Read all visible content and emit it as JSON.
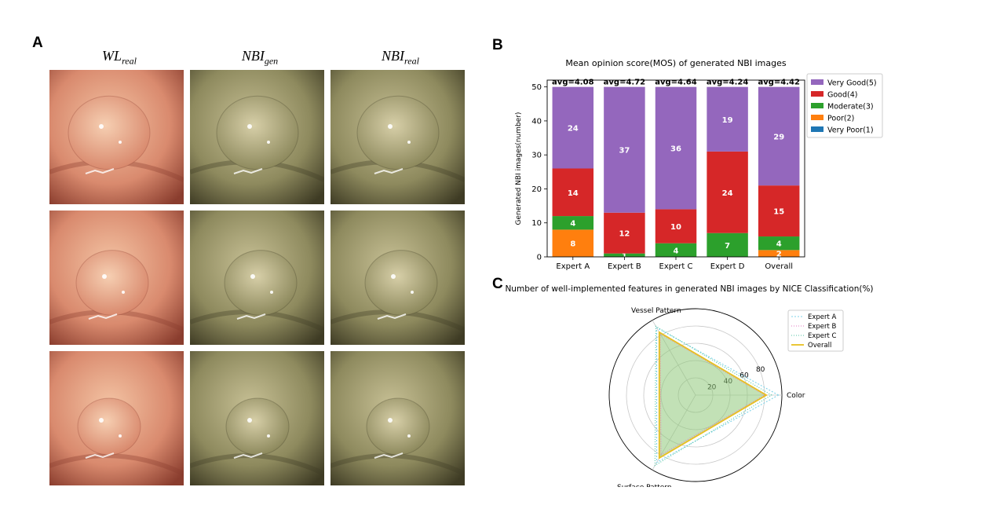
{
  "panels": {
    "a": "A",
    "b": "B",
    "c": "C"
  },
  "columns": [
    {
      "main": "WL",
      "sub": "real"
    },
    {
      "main": "NBI",
      "sub": "gen"
    },
    {
      "main": "NBI",
      "sub": "real"
    }
  ],
  "images": [
    {
      "row": 1,
      "col": 1,
      "kind": "wl"
    },
    {
      "row": 1,
      "col": 2,
      "kind": "nbi"
    },
    {
      "row": 1,
      "col": 3,
      "kind": "nbi"
    },
    {
      "row": 2,
      "col": 1,
      "kind": "wl"
    },
    {
      "row": 2,
      "col": 2,
      "kind": "nbi"
    },
    {
      "row": 2,
      "col": 3,
      "kind": "nbi"
    },
    {
      "row": 3,
      "col": 1,
      "kind": "wl"
    },
    {
      "row": 3,
      "col": 2,
      "kind": "nbi"
    },
    {
      "row": 3,
      "col": 3,
      "kind": "nbi"
    }
  ],
  "chart_data": [
    {
      "type": "bar",
      "stacked": true,
      "title": "Mean opinion score(MOS) of generated NBI images",
      "xlabel": "",
      "ylabel": "Generated NBI images(number)",
      "ylim": [
        0,
        52
      ],
      "yticks": [
        0,
        10,
        20,
        30,
        40,
        50
      ],
      "categories": [
        "Expert A",
        "Expert B",
        "Expert C",
        "Expert D",
        "Overall"
      ],
      "averages": [
        "avg=4.08",
        "avg=4.72",
        "avg=4.64",
        "avg=4.24",
        "avg=4.42"
      ],
      "series": [
        {
          "name": "Very Poor(1)",
          "color": "#1f77b4",
          "values": [
            0,
            0,
            0,
            0,
            0
          ]
        },
        {
          "name": "Poor(2)",
          "color": "#ff7f0e",
          "values": [
            8,
            0,
            0,
            0,
            2
          ]
        },
        {
          "name": "Moderate(3)",
          "color": "#2ca02c",
          "values": [
            4,
            1,
            4,
            7,
            4
          ]
        },
        {
          "name": "Good(4)",
          "color": "#d62728",
          "values": [
            14,
            12,
            10,
            24,
            15
          ]
        },
        {
          "name": "Very Good(5)",
          "color": "#9467bd",
          "values": [
            24,
            37,
            36,
            19,
            29
          ]
        }
      ],
      "legend_order": [
        "Very Good(5)",
        "Good(4)",
        "Moderate(3)",
        "Poor(2)",
        "Very Poor(1)"
      ],
      "legend": "outside-right",
      "grid": false
    },
    {
      "type": "radar",
      "title": "Number of well-implemented features in generated NBI images by NICE Classification(%)",
      "axes": [
        "Color",
        "Vessel Pattern",
        "Surface Pattern"
      ],
      "rlim": [
        0,
        100
      ],
      "rticks": [
        20,
        40,
        60,
        80
      ],
      "series": [
        {
          "name": "Expert A",
          "color": "#7fd3e8",
          "values": [
            96,
            90,
            90
          ]
        },
        {
          "name": "Expert B",
          "color": "#e377c2",
          "values": [
            80,
            82,
            80
          ]
        },
        {
          "name": "Expert C",
          "color": "#4fc3a0",
          "values": [
            88,
            92,
            94
          ]
        },
        {
          "name": "Overall",
          "color": "#e8c020",
          "values": [
            82,
            84,
            84
          ]
        }
      ],
      "fill": {
        "color": "#8fc87a"
      },
      "legend": "upper-right"
    }
  ]
}
